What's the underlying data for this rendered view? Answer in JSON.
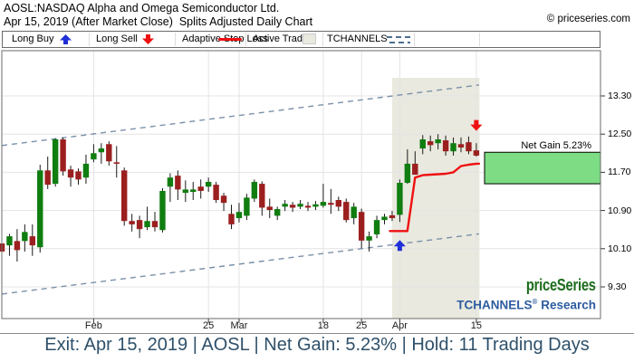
{
  "header": {
    "title_line1": "AOSL:NASDAQ Alpha and Omega Semiconductor Ltd.",
    "title_line2": "Apr 15, 2019 (After Market Close)  Splits Adjusted Daily Chart",
    "copyright": "© priceseries.com"
  },
  "legend": {
    "long_buy": "Long Buy",
    "long_sell": "Long Sell",
    "adaptive_stop_loss": "Adaptive Stop Loss",
    "active_trade": "Active Trade",
    "tchannels": "TCHANNELS"
  },
  "branding": {
    "logo": "priceSeries",
    "research_brand": "TCHANNELS",
    "research_reg": "®",
    "research_word": " Research"
  },
  "footer": {
    "summary": "Exit: Apr 15, 2019 | AOSL | Net Gain: 5.23% | Hold: 11 Trading Days"
  },
  "colors": {
    "up": "#0f7d0f",
    "down": "#9c1f1f",
    "wick": "#1a1a1a",
    "stop": "#ee1111",
    "channel": "#7a90a8",
    "legend_dash": "#4d6e8e",
    "active_bg": "#e9e9df",
    "gain_fill": "#7ddc84",
    "buy_blue": "#2030d8",
    "sell_red": "#ee1111",
    "grid": "#e4e4e4",
    "border": "#6b6b6b",
    "tick": "#333333",
    "banner_text": "#2e506a",
    "logo_green": "#1d6d1d",
    "research_blue": "#2d5c9e"
  },
  "chart_data": {
    "type": "candlestick",
    "symbol": "AOSL",
    "y_axis": {
      "ticks": [
        {
          "price": 13.3,
          "label": "13.30"
        },
        {
          "price": 12.5,
          "label": "12.50"
        },
        {
          "price": 11.7,
          "label": "11.70"
        },
        {
          "price": 10.9,
          "label": "10.90"
        },
        {
          "price": 10.1,
          "label": "10.10"
        },
        {
          "price": 9.3,
          "label": "9.30"
        }
      ]
    },
    "x_axis": {
      "ticks": [
        {
          "label": "Feb",
          "index": 12
        },
        {
          "label": "25",
          "index": 27
        },
        {
          "label": "Mar",
          "index": 31
        },
        {
          "label": "18",
          "index": 42
        },
        {
          "label": "25",
          "index": 47
        },
        {
          "label": "Apr",
          "index": 52
        },
        {
          "label": "15",
          "index": 62
        }
      ]
    },
    "candles": [
      {
        "d": "Jan 15",
        "o": 10.21,
        "h": 10.28,
        "l": 9.95,
        "c": 10.04
      },
      {
        "d": "Jan 16",
        "o": 10.17,
        "h": 10.41,
        "l": 9.95,
        "c": 10.36
      },
      {
        "d": "Jan 17",
        "o": 10.26,
        "h": 10.51,
        "l": 9.83,
        "c": 10.07
      },
      {
        "d": "Jan 18",
        "o": 10.26,
        "h": 10.61,
        "l": 10.04,
        "c": 10.45
      },
      {
        "d": "Jan 22",
        "o": 10.36,
        "h": 10.61,
        "l": 9.95,
        "c": 10.17
      },
      {
        "d": "Jan 23",
        "o": 10.13,
        "h": 11.86,
        "l": 10.02,
        "c": 11.74
      },
      {
        "d": "Jan 24",
        "o": 11.74,
        "h": 12.03,
        "l": 11.35,
        "c": 11.44
      },
      {
        "d": "Jan 25",
        "o": 11.46,
        "h": 12.41,
        "l": 11.4,
        "c": 12.39
      },
      {
        "d": "Jan 28",
        "o": 12.39,
        "h": 12.43,
        "l": 11.63,
        "c": 11.72
      },
      {
        "d": "Jan 29",
        "o": 11.76,
        "h": 11.84,
        "l": 11.4,
        "c": 11.59
      },
      {
        "d": "Jan 30",
        "o": 11.72,
        "h": 11.78,
        "l": 11.44,
        "c": 11.55
      },
      {
        "d": "Jan 31",
        "o": 11.59,
        "h": 12.07,
        "l": 11.46,
        "c": 11.88
      },
      {
        "d": "Feb 1",
        "o": 11.97,
        "h": 12.29,
        "l": 11.91,
        "c": 12.1
      },
      {
        "d": "Feb 4",
        "o": 12.12,
        "h": 12.31,
        "l": 11.88,
        "c": 12.2
      },
      {
        "d": "Feb 5",
        "o": 12.29,
        "h": 12.35,
        "l": 11.84,
        "c": 11.93
      },
      {
        "d": "Feb 6",
        "o": 11.91,
        "h": 12.25,
        "l": 11.59,
        "c": 11.88
      },
      {
        "d": "Feb 7",
        "o": 11.74,
        "h": 11.8,
        "l": 10.58,
        "c": 10.68
      },
      {
        "d": "Feb 8",
        "o": 10.68,
        "h": 10.83,
        "l": 10.46,
        "c": 10.61
      },
      {
        "d": "Feb 11",
        "o": 10.7,
        "h": 10.79,
        "l": 10.32,
        "c": 10.51
      },
      {
        "d": "Feb 12",
        "o": 10.55,
        "h": 10.98,
        "l": 10.49,
        "c": 10.68
      },
      {
        "d": "Feb 13",
        "o": 10.68,
        "h": 10.87,
        "l": 10.46,
        "c": 10.55
      },
      {
        "d": "Feb 14",
        "o": 10.49,
        "h": 11.37,
        "l": 10.44,
        "c": 11.31
      },
      {
        "d": "Feb 15",
        "o": 11.4,
        "h": 11.68,
        "l": 11.08,
        "c": 11.59
      },
      {
        "d": "Feb 19",
        "o": 11.63,
        "h": 11.74,
        "l": 11.12,
        "c": 11.34
      },
      {
        "d": "Feb 20",
        "o": 11.27,
        "h": 11.53,
        "l": 11.08,
        "c": 11.34
      },
      {
        "d": "Feb 21",
        "o": 11.29,
        "h": 11.5,
        "l": 11.12,
        "c": 11.34
      },
      {
        "d": "Feb 22",
        "o": 11.4,
        "h": 11.55,
        "l": 11.15,
        "c": 11.31
      },
      {
        "d": "Feb 25",
        "o": 11.4,
        "h": 11.59,
        "l": 11.29,
        "c": 11.5
      },
      {
        "d": "Feb 26",
        "o": 11.44,
        "h": 11.5,
        "l": 11.06,
        "c": 11.12
      },
      {
        "d": "Feb 27",
        "o": 11.21,
        "h": 11.27,
        "l": 10.89,
        "c": 11.06
      },
      {
        "d": "Feb 28",
        "o": 10.83,
        "h": 11.02,
        "l": 10.51,
        "c": 10.61
      },
      {
        "d": "Mar 1",
        "o": 10.74,
        "h": 11.06,
        "l": 10.65,
        "c": 10.87
      },
      {
        "d": "Mar 4",
        "o": 10.79,
        "h": 11.25,
        "l": 10.7,
        "c": 11.17
      },
      {
        "d": "Mar 5",
        "o": 11.15,
        "h": 11.55,
        "l": 11.08,
        "c": 11.5
      },
      {
        "d": "Mar 6",
        "o": 11.46,
        "h": 11.51,
        "l": 10.79,
        "c": 10.96
      },
      {
        "d": "Mar 7",
        "o": 10.98,
        "h": 11.15,
        "l": 10.74,
        "c": 10.91
      },
      {
        "d": "Mar 8",
        "o": 10.79,
        "h": 10.98,
        "l": 10.7,
        "c": 10.93
      },
      {
        "d": "Mar 11",
        "o": 10.98,
        "h": 11.12,
        "l": 10.89,
        "c": 11.04
      },
      {
        "d": "Mar 12",
        "o": 11.02,
        "h": 11.08,
        "l": 10.87,
        "c": 10.96
      },
      {
        "d": "Mar 13",
        "o": 10.98,
        "h": 11.12,
        "l": 10.93,
        "c": 11.04
      },
      {
        "d": "Mar 14",
        "o": 11.0,
        "h": 11.08,
        "l": 10.89,
        "c": 10.96
      },
      {
        "d": "Mar 15",
        "o": 10.98,
        "h": 11.1,
        "l": 10.91,
        "c": 11.03
      },
      {
        "d": "Mar 18",
        "o": 11.0,
        "h": 11.46,
        "l": 10.96,
        "c": 11.08
      },
      {
        "d": "Mar 19",
        "o": 11.06,
        "h": 11.35,
        "l": 10.83,
        "c": 11.02
      },
      {
        "d": "Mar 20",
        "o": 11.12,
        "h": 11.19,
        "l": 10.89,
        "c": 10.98
      },
      {
        "d": "Mar 21",
        "o": 11.08,
        "h": 11.15,
        "l": 10.65,
        "c": 10.7
      },
      {
        "d": "Mar 22",
        "o": 10.74,
        "h": 11.06,
        "l": 10.61,
        "c": 10.98
      },
      {
        "d": "Mar 25",
        "o": 10.87,
        "h": 10.94,
        "l": 10.11,
        "c": 10.27
      },
      {
        "d": "Mar 26",
        "o": 10.27,
        "h": 10.46,
        "l": 10.04,
        "c": 10.36
      },
      {
        "d": "Mar 27",
        "o": 10.4,
        "h": 10.79,
        "l": 10.32,
        "c": 10.7
      },
      {
        "d": "Mar 28",
        "o": 10.7,
        "h": 10.83,
        "l": 10.61,
        "c": 10.77
      },
      {
        "d": "Mar 29",
        "o": 10.8,
        "h": 10.89,
        "l": 10.68,
        "c": 10.74
      },
      {
        "d": "Apr 1",
        "o": 10.81,
        "h": 11.55,
        "l": 10.66,
        "c": 11.48
      },
      {
        "d": "Apr 2",
        "o": 11.48,
        "h": 12.18,
        "l": 11.46,
        "c": 11.88
      },
      {
        "d": "Apr 3",
        "o": 11.88,
        "h": 12.14,
        "l": 11.65,
        "c": 11.65
      },
      {
        "d": "Apr 4",
        "o": 12.2,
        "h": 12.48,
        "l": 12.08,
        "c": 12.39
      },
      {
        "d": "Apr 5",
        "o": 12.35,
        "h": 12.47,
        "l": 12.14,
        "c": 12.27
      },
      {
        "d": "Apr 8",
        "o": 12.31,
        "h": 12.5,
        "l": 12.18,
        "c": 12.39
      },
      {
        "d": "Apr 9",
        "o": 12.37,
        "h": 12.47,
        "l": 12.05,
        "c": 12.14
      },
      {
        "d": "Apr 10",
        "o": 12.14,
        "h": 12.43,
        "l": 12.05,
        "c": 12.31
      },
      {
        "d": "Apr 11",
        "o": 12.29,
        "h": 12.43,
        "l": 12.12,
        "c": 12.22
      },
      {
        "d": "Apr 12",
        "o": 12.33,
        "h": 12.45,
        "l": 12.08,
        "c": 12.14
      },
      {
        "d": "Apr 15",
        "o": 12.16,
        "h": 12.31,
        "l": 12.03,
        "c": 12.05
      }
    ],
    "stop_loss": {
      "start_index": 52,
      "prices": [
        10.47,
        10.47,
        11.59,
        11.64,
        11.65,
        11.66,
        11.67,
        11.7,
        11.83,
        11.86,
        11.88
      ]
    },
    "channels": {
      "upper": {
        "p_start": 12.26,
        "p_end": 13.53
      },
      "lower": {
        "p_start": 9.15,
        "p_end": 10.41
      },
      "end_index": 62
    },
    "active_trade": {
      "start_index": 52,
      "end_index": 62
    },
    "net_gain_box": {
      "label": "Net Gain 5.23%",
      "price_top": 12.12,
      "price_bottom": 11.46
    },
    "markers": {
      "buy": {
        "index": 52,
        "price": 10.28
      },
      "sell": {
        "index": 62,
        "price": 12.7
      }
    }
  }
}
